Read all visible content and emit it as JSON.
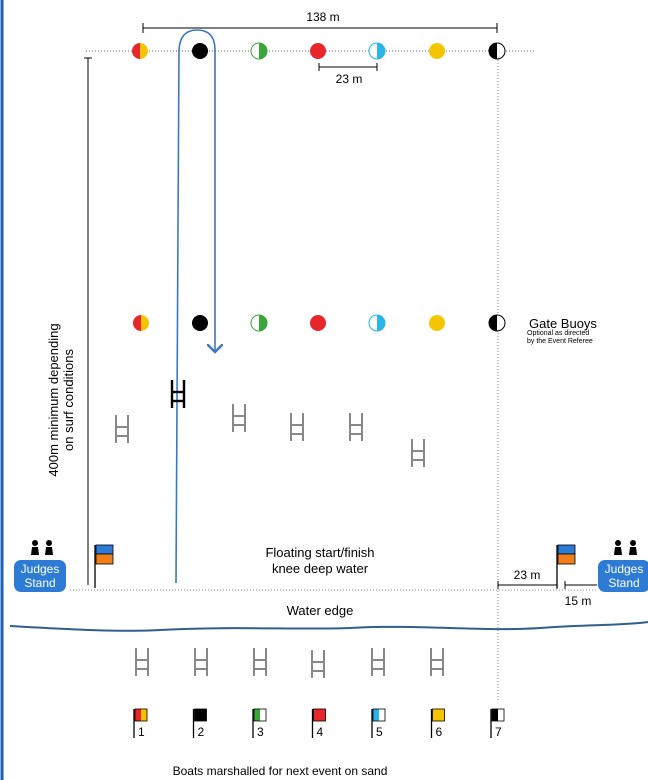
{
  "measurements": {
    "course_width": "138 m",
    "buoy_spacing": "23 m",
    "flag_to_buoy": "23 m",
    "judges_offset": "15 m",
    "course_length_line1": "400m minimum depending",
    "course_length_line2": "on surf conditions"
  },
  "gate_buoys": {
    "title": "Gate Buoys",
    "note_line1": "Optional as directed",
    "note_line2": "by the Event Referee"
  },
  "start_finish": {
    "line1": "Floating start/finish",
    "line2": "knee deep water"
  },
  "judges_stand": {
    "line1": "Judges",
    "line2": "Stand"
  },
  "water_edge": "Water edge",
  "marshalling": "Boats marshalled for next event on sand",
  "lanes": [
    {
      "number": "1",
      "color_a": "#e8262b",
      "color_b": "#f5c400",
      "style": "split"
    },
    {
      "number": "2",
      "color_a": "#000000",
      "color_b": "#000000",
      "style": "solid"
    },
    {
      "number": "3",
      "color_a": "#3aa63a",
      "color_b": "#ffffff",
      "style": "split"
    },
    {
      "number": "4",
      "color_a": "#e8262b",
      "color_b": "#e8262b",
      "style": "solid"
    },
    {
      "number": "5",
      "color_a": "#29b5ea",
      "color_b": "#ffffff",
      "style": "split"
    },
    {
      "number": "6",
      "color_a": "#f5c400",
      "color_b": "#f5c400",
      "style": "solid"
    },
    {
      "number": "7",
      "color_a": "#000000",
      "color_b": "#ffffff",
      "style": "split"
    }
  ],
  "colors": {
    "course_path": "#3b78c3",
    "judges_fill": "#2e7bd6",
    "start_flag_top": "#2e7bd6",
    "start_flag_bottom": "#f07f1a",
    "frame_border": "#1f5fbf"
  },
  "icons": [
    "person-icon",
    "flag-icon",
    "boat-icon",
    "buoy-icon"
  ]
}
